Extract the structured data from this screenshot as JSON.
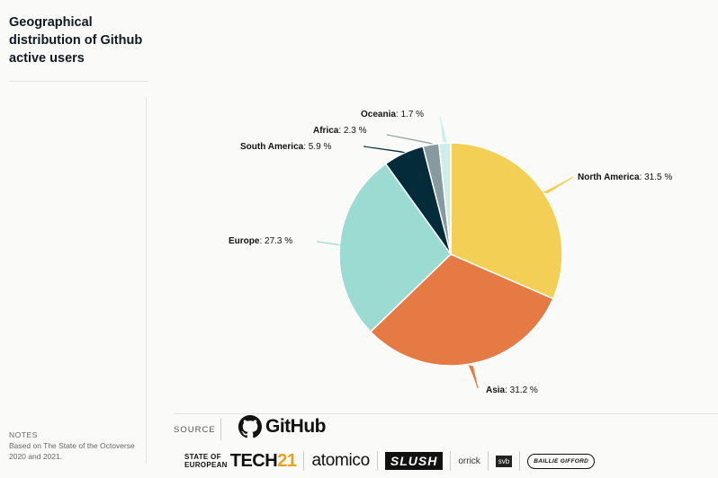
{
  "page": {
    "title": "Geographical distribution of Github active users"
  },
  "notes": {
    "label": "NOTES",
    "text": "Based on The State of the Octoverse 2020 and 2021."
  },
  "footer": {
    "source_label": "SOURCE",
    "source_name": "GitHub",
    "partners": {
      "sot_line1": "STATE OF",
      "sot_line2": "EUROPEAN",
      "sot_tech": "TECH",
      "sot_num": "21",
      "atomico": "atomico",
      "slush": "SLUSH",
      "orrick": "orrick",
      "svb": "svb",
      "baillie": "BAILLIE GIFFORD"
    }
  },
  "chart_data": {
    "type": "pie",
    "unit": " %",
    "slices": [
      {
        "label": "North America",
        "value": 31.5,
        "color": "#f4cf55"
      },
      {
        "label": "Asia",
        "value": 31.2,
        "color": "#e57a45"
      },
      {
        "label": "Europe",
        "value": 27.3,
        "color": "#9cdbd2"
      },
      {
        "label": "South America",
        "value": 5.9,
        "color": "#042b39"
      },
      {
        "label": "Africa",
        "value": 2.3,
        "color": "#869aa0"
      },
      {
        "label": "Oceania",
        "value": 1.7,
        "color": "#cdeee8"
      }
    ]
  }
}
